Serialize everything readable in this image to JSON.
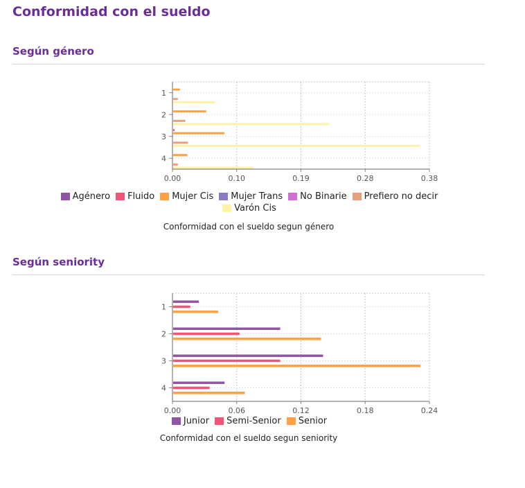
{
  "page": {
    "title": "Conformidad con el sueldo"
  },
  "sections": [
    {
      "title": "Según género"
    },
    {
      "title": "Según seniority"
    }
  ],
  "chart_data": [
    {
      "type": "bar",
      "orientation": "horizontal",
      "categories": [
        "1",
        "2",
        "3",
        "4"
      ],
      "xlim": [
        0,
        0.38
      ],
      "xticks": [
        "0.00",
        "0.10",
        "0.19",
        "0.28",
        "0.38"
      ],
      "grid": true,
      "legend_position": "bottom",
      "caption": "Conformidad con el sueldo segun género",
      "series": [
        {
          "name": "Agénero",
          "color": "#9055a2",
          "values": [
            0,
            0,
            0,
            0
          ]
        },
        {
          "name": "Fluido",
          "color": "#ef5675",
          "values": [
            0,
            0,
            0.002,
            0
          ]
        },
        {
          "name": "Mujer Cis",
          "color": "#ffa142",
          "values": [
            0.01,
            0.049,
            0.076,
            0.021
          ]
        },
        {
          "name": "Mujer Trans",
          "color": "#8b79c2",
          "values": [
            0,
            0,
            0,
            0
          ]
        },
        {
          "name": "No Binarie",
          "color": "#d06fd6",
          "values": [
            0,
            0,
            0,
            0
          ]
        },
        {
          "name": "Prefiero no decir",
          "color": "#e8a07a",
          "values": [
            0.007,
            0.018,
            0.022,
            0.007
          ]
        },
        {
          "name": "Varón Cis",
          "color": "#fff3a8",
          "values": [
            0.062,
            0.231,
            0.365,
            0.118
          ]
        }
      ]
    },
    {
      "type": "bar",
      "orientation": "horizontal",
      "categories": [
        "1",
        "2",
        "3",
        "4"
      ],
      "xlim": [
        0,
        0.24
      ],
      "xticks": [
        "0.00",
        "0.06",
        "0.12",
        "0.18",
        "0.24"
      ],
      "grid": true,
      "legend_position": "bottom",
      "caption": "Conformidad con el sueldo segun seniority",
      "series": [
        {
          "name": "Junior",
          "color": "#9055a2",
          "values": [
            0.024,
            0.1,
            0.14,
            0.048
          ]
        },
        {
          "name": "Semi-Senior",
          "color": "#ef5675",
          "values": [
            0.016,
            0.062,
            0.1,
            0.034
          ]
        },
        {
          "name": "Senior",
          "color": "#ffa142",
          "values": [
            0.042,
            0.138,
            0.231,
            0.067
          ]
        }
      ]
    }
  ]
}
